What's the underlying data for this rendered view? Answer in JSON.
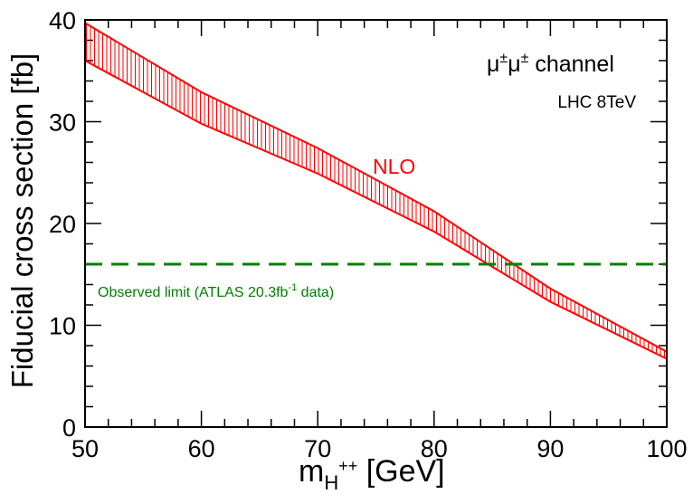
{
  "chart_data": {
    "type": "area",
    "xlabel_main": "m",
    "xlabel_sub": "H",
    "xlabel_sup": "++",
    "xlabel_unit": " [GeV]",
    "ylabel": "Fiducial cross section [fb]",
    "xlim": [
      50,
      100
    ],
    "ylim": [
      0,
      40
    ],
    "x_ticks": [
      "50",
      "60",
      "70",
      "80",
      "90",
      "100"
    ],
    "y_ticks": [
      "0",
      "10",
      "20",
      "30",
      "40"
    ],
    "x_tick_values": [
      50,
      60,
      70,
      80,
      90,
      100
    ],
    "y_tick_values": [
      0,
      10,
      20,
      30,
      40
    ],
    "band": {
      "name": "NLO",
      "color": "#ff0000",
      "x": [
        50,
        60,
        70,
        80,
        90,
        100
      ],
      "upper": [
        39.7,
        32.9,
        27.4,
        21.2,
        13.6,
        7.4
      ],
      "lower": [
        36.0,
        29.8,
        24.9,
        19.2,
        12.3,
        6.7
      ]
    },
    "limit": {
      "label_main": "Observed limit (ATLAS 20.3fb",
      "label_sup": "-1",
      "label_end": " data)",
      "value": 16.0,
      "color": "#008000"
    },
    "annotations": {
      "channel_mu1": "μ",
      "channel_pm1": "±",
      "channel_mu2": "μ",
      "channel_pm2": "±",
      "channel_text": " channel",
      "energy": "LHC 8TeV"
    }
  }
}
